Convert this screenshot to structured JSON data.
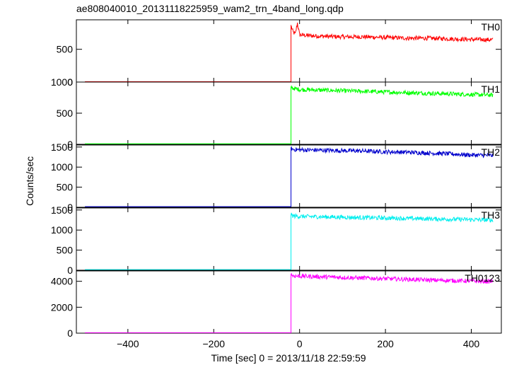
{
  "title": "ae808040010_20131118225959_wam2_trn_4band_long.qdp",
  "xlabel": "Time [sec] 0 = 2013/11/18 22:59:59",
  "ylabel": "Counts/sec",
  "chart_data": {
    "type": "line",
    "title": "ae808040010_20131118225959_wam2_trn_4band_long.qdp",
    "xlabel": "Time [sec] 0 = 2013/11/18 22:59:59",
    "ylabel": "Counts/sec",
    "xlim": [
      -520,
      470
    ],
    "x_ticks": [
      -400,
      -200,
      0,
      200,
      400
    ],
    "shared_x": true,
    "panels": [
      {
        "name": "TH0",
        "color": "#ff0000",
        "ylim": [
          0,
          950
        ],
        "y_ticks": [
          0,
          500
        ],
        "y_tick_labels": [
          "0",
          "500"
        ],
        "segments": [
          {
            "x": [
              -500,
              -20
            ],
            "y": [
              5,
              5
            ]
          },
          {
            "x": [
              -20,
              -15,
              -10,
              -5,
              0,
              20,
              50,
              100,
              150,
              200,
              250,
              300,
              350,
              400,
              450
            ],
            "y": [
              860,
              760,
              730,
              900,
              720,
              710,
              700,
              690,
              690,
              680,
              670,
              670,
              660,
              650,
              645
            ]
          }
        ]
      },
      {
        "name": "TH1",
        "color": "#00ff00",
        "ylim": [
          0,
          1000
        ],
        "y_ticks": [
          0,
          500,
          1000
        ],
        "y_tick_labels": [
          "0",
          "500",
          "1000"
        ],
        "segments": [
          {
            "x": [
              -500,
              -20
            ],
            "y": [
              8,
              8
            ]
          },
          {
            "x": [
              -20,
              -15,
              0,
              50,
              100,
              150,
              200,
              250,
              300,
              350,
              400,
              450
            ],
            "y": [
              920,
              900,
              880,
              870,
              860,
              850,
              840,
              830,
              820,
              810,
              800,
              790
            ]
          }
        ]
      },
      {
        "name": "TH2",
        "color": "#0000cc",
        "ylim": [
          0,
          1550
        ],
        "y_ticks": [
          0,
          500,
          1000,
          1500
        ],
        "y_tick_labels": [
          "0",
          "500",
          "1000",
          "1500"
        ],
        "segments": [
          {
            "x": [
              -500,
              -20
            ],
            "y": [
              15,
              15
            ]
          },
          {
            "x": [
              -20,
              -15,
              0,
              50,
              100,
              150,
              200,
              250,
              300,
              350,
              400,
              450
            ],
            "y": [
              1470,
              1440,
              1430,
              1420,
              1410,
              1400,
              1380,
              1370,
              1350,
              1330,
              1300,
              1290
            ]
          }
        ]
      },
      {
        "name": "TH3",
        "color": "#00eeee",
        "ylim": [
          0,
          1550
        ],
        "y_ticks": [
          0,
          500,
          1000,
          1500
        ],
        "y_tick_labels": [
          "0",
          "500",
          "1000",
          "1500"
        ],
        "segments": [
          {
            "x": [
              -500,
              -20
            ],
            "y": [
              15,
              15
            ]
          },
          {
            "x": [
              -20,
              -15,
              0,
              50,
              100,
              150,
              200,
              250,
              300,
              350,
              400,
              450
            ],
            "y": [
              1380,
              1350,
              1340,
              1330,
              1320,
              1310,
              1300,
              1290,
              1280,
              1270,
              1260,
              1250
            ]
          }
        ]
      },
      {
        "name": "TH0123",
        "color": "#ff00ff",
        "ylim": [
          0,
          4800
        ],
        "y_ticks": [
          0,
          2000,
          4000
        ],
        "y_tick_labels": [
          "0",
          "2000",
          "4000"
        ],
        "segments": [
          {
            "x": [
              -500,
              -20
            ],
            "y": [
              30,
              30
            ]
          },
          {
            "x": [
              -20,
              -15,
              0,
              50,
              100,
              150,
              200,
              250,
              300,
              350,
              400,
              450
            ],
            "y": [
              4550,
              4420,
              4400,
              4350,
              4300,
              4250,
              4200,
              4150,
              4100,
              4060,
              4020,
              3980
            ]
          }
        ]
      }
    ]
  }
}
